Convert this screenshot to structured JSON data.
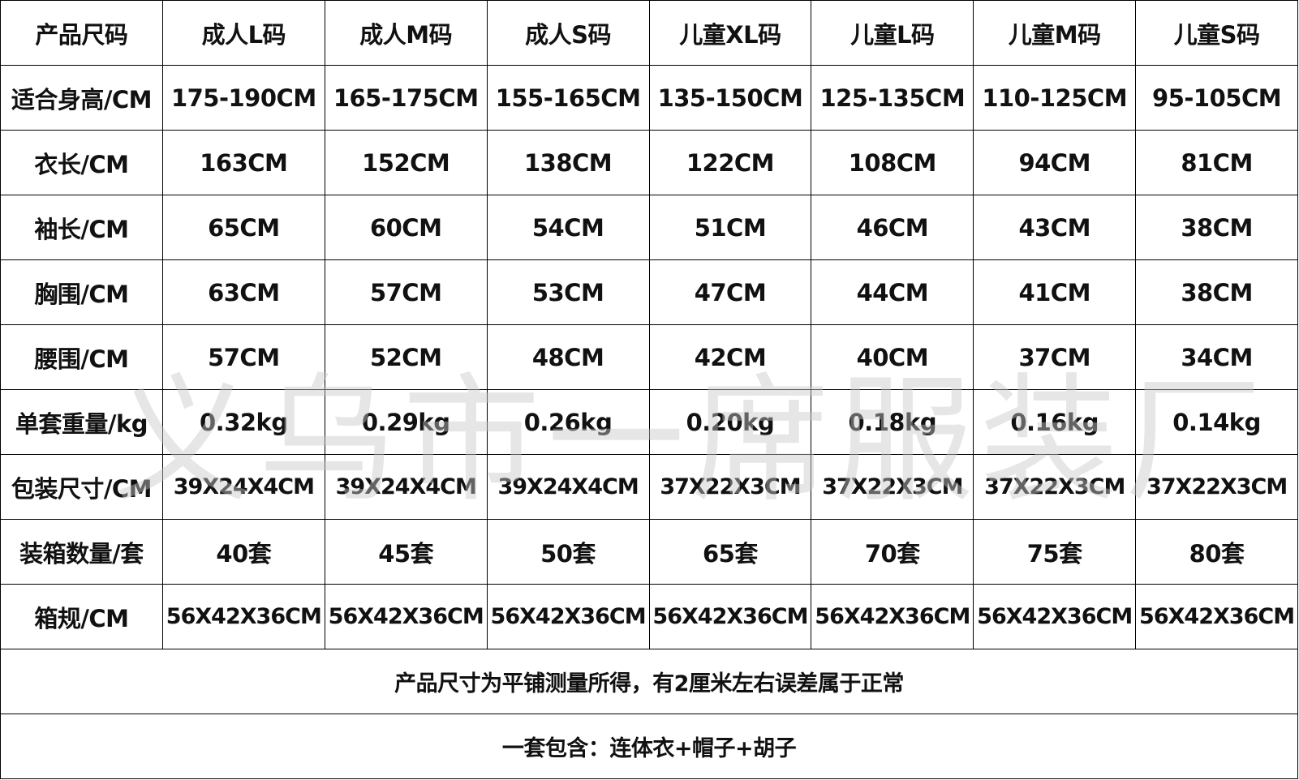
{
  "columns": [
    "产品尺码",
    "成人L码",
    "成人M码",
    "成人S码",
    "儿童XL码",
    "儿童L码",
    "儿童M码",
    "儿童S码"
  ],
  "rows": [
    {
      "label": "适合身高/CM",
      "values": [
        "175-190CM",
        "165-175CM",
        "155-165CM",
        "135-150CM",
        "125-135CM",
        "110-125CM",
        "95-105CM"
      ]
    },
    {
      "label": "衣长/CM",
      "values": [
        "163CM",
        "152CM",
        "138CM",
        "122CM",
        "108CM",
        "94CM",
        "81CM"
      ]
    },
    {
      "label": "袖长/CM",
      "values": [
        "65CM",
        "60CM",
        "54CM",
        "51CM",
        "46CM",
        "43CM",
        "38CM"
      ]
    },
    {
      "label": "胸围/CM",
      "values": [
        "63CM",
        "57CM",
        "53CM",
        "47CM",
        "44CM",
        "41CM",
        "38CM"
      ]
    },
    {
      "label": "腰围/CM",
      "values": [
        "57CM",
        "52CM",
        "48CM",
        "42CM",
        "40CM",
        "37CM",
        "34CM"
      ]
    },
    {
      "label": "单套重量/kg",
      "values": [
        "0.32kg",
        "0.29kg",
        "0.26kg",
        "0.20kg",
        "0.18kg",
        "0.16kg",
        "0.14kg"
      ]
    },
    {
      "label": "包装尺寸/CM",
      "values": [
        "39X24X4CM",
        "39X24X4CM",
        "39X24X4CM",
        "37X22X3CM",
        "37X22X3CM",
        "37X22X3CM",
        "37X22X3CM"
      ]
    },
    {
      "label": "装箱数量/套",
      "values": [
        "40套",
        "45套",
        "50套",
        "65套",
        "70套",
        "75套",
        "80套"
      ]
    },
    {
      "label": "箱规/CM",
      "values": [
        "56X42X36CM",
        "56X42X36CM",
        "56X42X36CM",
        "56X42X36CM",
        "56X42X36CM",
        "56X42X36CM",
        "56X42X36CM"
      ]
    }
  ],
  "notes": [
    "产品尺寸为平铺测量所得，有2厘米左右误差属于正常",
    "一套包含：连体衣+帽子+胡子"
  ],
  "watermark": "义乌市一席服装厂"
}
